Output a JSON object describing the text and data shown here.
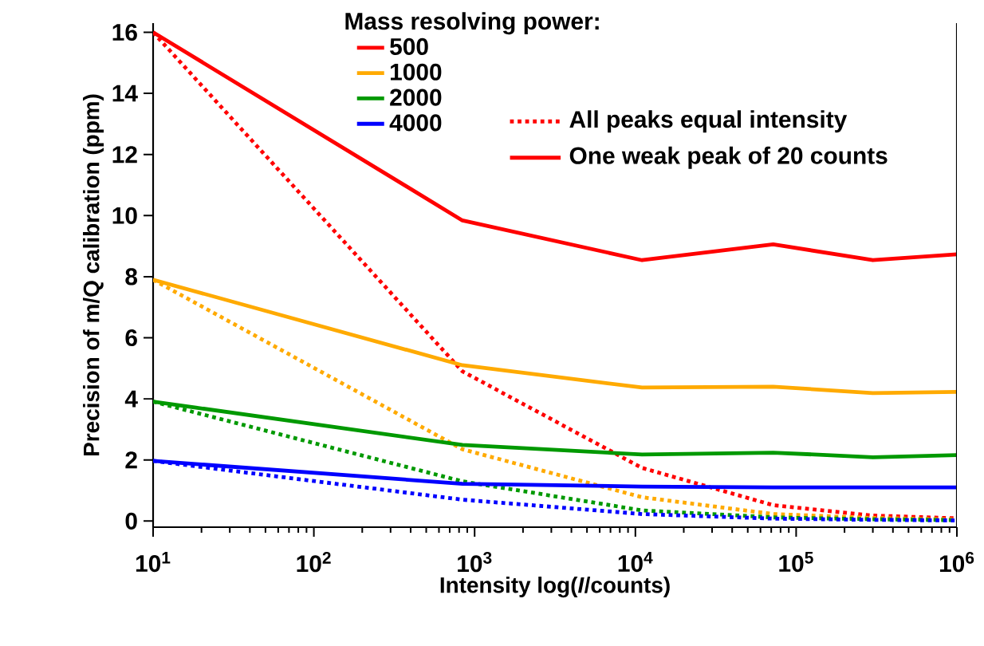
{
  "chart_data": {
    "type": "line",
    "xlabel": "Intensity log(*I*/counts)",
    "ylabel": "Precision of m/Q calibration (ppm)",
    "legend_title": "Mass resolving power:",
    "legend": "top",
    "log": "x",
    "xlim": [
      10,
      1000000
    ],
    "ylim": [
      -0.2,
      16.3
    ],
    "xticks": [
      {
        "value": 10,
        "label": "10$^{1}$"
      },
      {
        "value": 100,
        "label": "10$^{2}$"
      },
      {
        "value": 1000,
        "label": "10$^{3}$"
      },
      {
        "value": 10000,
        "label": "10$^{4}$"
      },
      {
        "value": 100000,
        "label": "10$^{5}$"
      },
      {
        "value": 1000000,
        "label": "10$^{6}$"
      }
    ],
    "yticks": [
      0,
      2,
      4,
      6,
      8,
      10,
      12,
      14,
      16
    ],
    "grid": false,
    "marker": "none",
    "x": [
      10,
      840,
      11000,
      72000,
      300000,
      1000000
    ],
    "series": [
      {
        "color": "#ff0000",
        "line_style": "dotted",
        "values": [
          16,
          4.9,
          1.74,
          0.52,
          0.18,
          0.09
        ]
      },
      {
        "color": "#ffaa00",
        "line_style": "dotted",
        "values": [
          7.9,
          2.35,
          0.78,
          0.23,
          0.1,
          0.05
        ]
      },
      {
        "color": "#009900",
        "line_style": "dotted",
        "values": [
          3.91,
          1.3,
          0.35,
          0.12,
          0.06,
          0.03
        ]
      },
      {
        "color": "#0000ff",
        "line_style": "dotted",
        "values": [
          1.97,
          0.7,
          0.23,
          0.08,
          0.04,
          0.02
        ]
      },
      {
        "name": "500",
        "color": "#ff0000",
        "line_style": "solid",
        "values": [
          16,
          9.84,
          8.54,
          9.06,
          8.54,
          8.73
        ]
      },
      {
        "name": "1000",
        "color": "#ffaa00",
        "line_style": "solid",
        "values": [
          7.9,
          5.1,
          4.37,
          4.4,
          4.19,
          4.23
        ]
      },
      {
        "name": "2000",
        "color": "#009900",
        "line_style": "solid",
        "values": [
          3.91,
          2.49,
          2.18,
          2.24,
          2.09,
          2.16
        ]
      },
      {
        "name": "4000",
        "color": "#0000ff",
        "line_style": "solid",
        "values": [
          1.97,
          1.22,
          1.13,
          1.1,
          1.1,
          1.1
        ]
      }
    ],
    "annotations": [
      "All peaks equal intensity",
      "One weak peak of 20 counts"
    ]
  }
}
